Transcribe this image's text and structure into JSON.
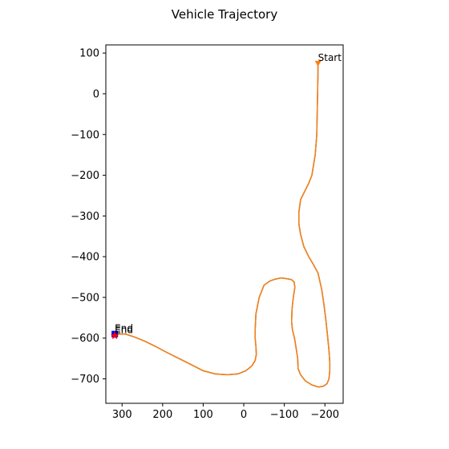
{
  "chart_data": {
    "type": "line",
    "title": "Vehicle Trajectory",
    "xlabel": "",
    "ylabel": "",
    "xlim": [
      340,
      -245
    ],
    "ylim": [
      -760,
      120
    ],
    "x_inverted": true,
    "x_ticks": [
      300,
      200,
      100,
      0,
      -100,
      -200
    ],
    "x_tick_labels": [
      "300",
      "200",
      "100",
      "0",
      "−100",
      "−200"
    ],
    "y_ticks": [
      100,
      0,
      -100,
      -200,
      -300,
      -400,
      -500,
      -600,
      -700
    ],
    "y_tick_labels": [
      "100",
      "0",
      "−100",
      "−200",
      "−300",
      "−400",
      "−500",
      "−600",
      "−700"
    ],
    "grid": false,
    "series": [
      {
        "color": "#1f77b4",
        "x": [
          -183,
          -183,
          -182,
          -180,
          -176,
          -168,
          -160,
          -150,
          -140,
          -136,
          -136,
          -140,
          -148,
          -160,
          -172,
          -183,
          -192,
          -198,
          -203,
          -207,
          -210,
          -212,
          -212,
          -210,
          -205,
          -196,
          -184,
          -168,
          -152,
          -140,
          -134,
          -133,
          -130,
          -125,
          -120,
          -118,
          -119,
          -122,
          -126,
          -124,
          -117,
          -106,
          -92,
          -78,
          -64,
          -50,
          -38,
          -30,
          -28,
          -28,
          -30,
          -31,
          -28,
          -20,
          -5,
          15,
          40,
          70,
          100,
          130,
          160,
          190,
          218,
          245,
          270,
          292,
          310,
          318
        ],
        "y": [
          75,
          50,
          0,
          -100,
          -150,
          -200,
          -220,
          -240,
          -260,
          -290,
          -320,
          -345,
          -375,
          -400,
          -420,
          -440,
          -480,
          -520,
          -560,
          -600,
          -630,
          -660,
          -680,
          -700,
          -712,
          -718,
          -720,
          -715,
          -705,
          -690,
          -675,
          -650,
          -630,
          -600,
          -580,
          -560,
          -530,
          -500,
          -475,
          -462,
          -456,
          -454,
          -452,
          -455,
          -460,
          -470,
          -500,
          -540,
          -580,
          -600,
          -620,
          -640,
          -655,
          -668,
          -680,
          -688,
          -690,
          -688,
          -680,
          -665,
          -650,
          -635,
          -620,
          -607,
          -597,
          -590,
          -590,
          -590
        ]
      },
      {
        "color": "#ff7f0e",
        "x": [
          -183,
          -183,
          -182,
          -180,
          -176,
          -168,
          -160,
          -150,
          -140,
          -136,
          -136,
          -140,
          -148,
          -160,
          -172,
          -183,
          -192,
          -198,
          -203,
          -207,
          -210,
          -212,
          -212,
          -210,
          -205,
          -196,
          -184,
          -168,
          -152,
          -140,
          -134,
          -133,
          -130,
          -125,
          -120,
          -118,
          -119,
          -122,
          -126,
          -124,
          -117,
          -106,
          -92,
          -78,
          -64,
          -50,
          -38,
          -30,
          -28,
          -28,
          -30,
          -31,
          -28,
          -20,
          -5,
          15,
          40,
          70,
          100,
          130,
          160,
          190,
          218,
          245,
          270,
          292,
          310,
          318
        ],
        "y": [
          75,
          50,
          0,
          -100,
          -150,
          -200,
          -220,
          -240,
          -260,
          -290,
          -320,
          -345,
          -375,
          -400,
          -420,
          -440,
          -480,
          -520,
          -560,
          -600,
          -630,
          -660,
          -680,
          -700,
          -712,
          -718,
          -720,
          -715,
          -705,
          -690,
          -675,
          -650,
          -630,
          -600,
          -580,
          -560,
          -530,
          -500,
          -475,
          -462,
          -456,
          -454,
          -452,
          -455,
          -460,
          -470,
          -500,
          -540,
          -580,
          -600,
          -620,
          -640,
          -655,
          -668,
          -680,
          -688,
          -690,
          -688,
          -680,
          -665,
          -650,
          -635,
          -620,
          -607,
          -597,
          -590,
          -590,
          -590
        ]
      }
    ],
    "markers": [
      {
        "label": "Start",
        "x": -183,
        "y": 75,
        "color": "#ff7f0e",
        "shape": "triangle"
      },
      {
        "label": "End",
        "x": 318,
        "y": -590,
        "color": "#0000ff",
        "shape": "square"
      },
      {
        "label": "End",
        "x": 318,
        "y": -594,
        "color": "#ff0000",
        "shape": "star"
      }
    ]
  }
}
